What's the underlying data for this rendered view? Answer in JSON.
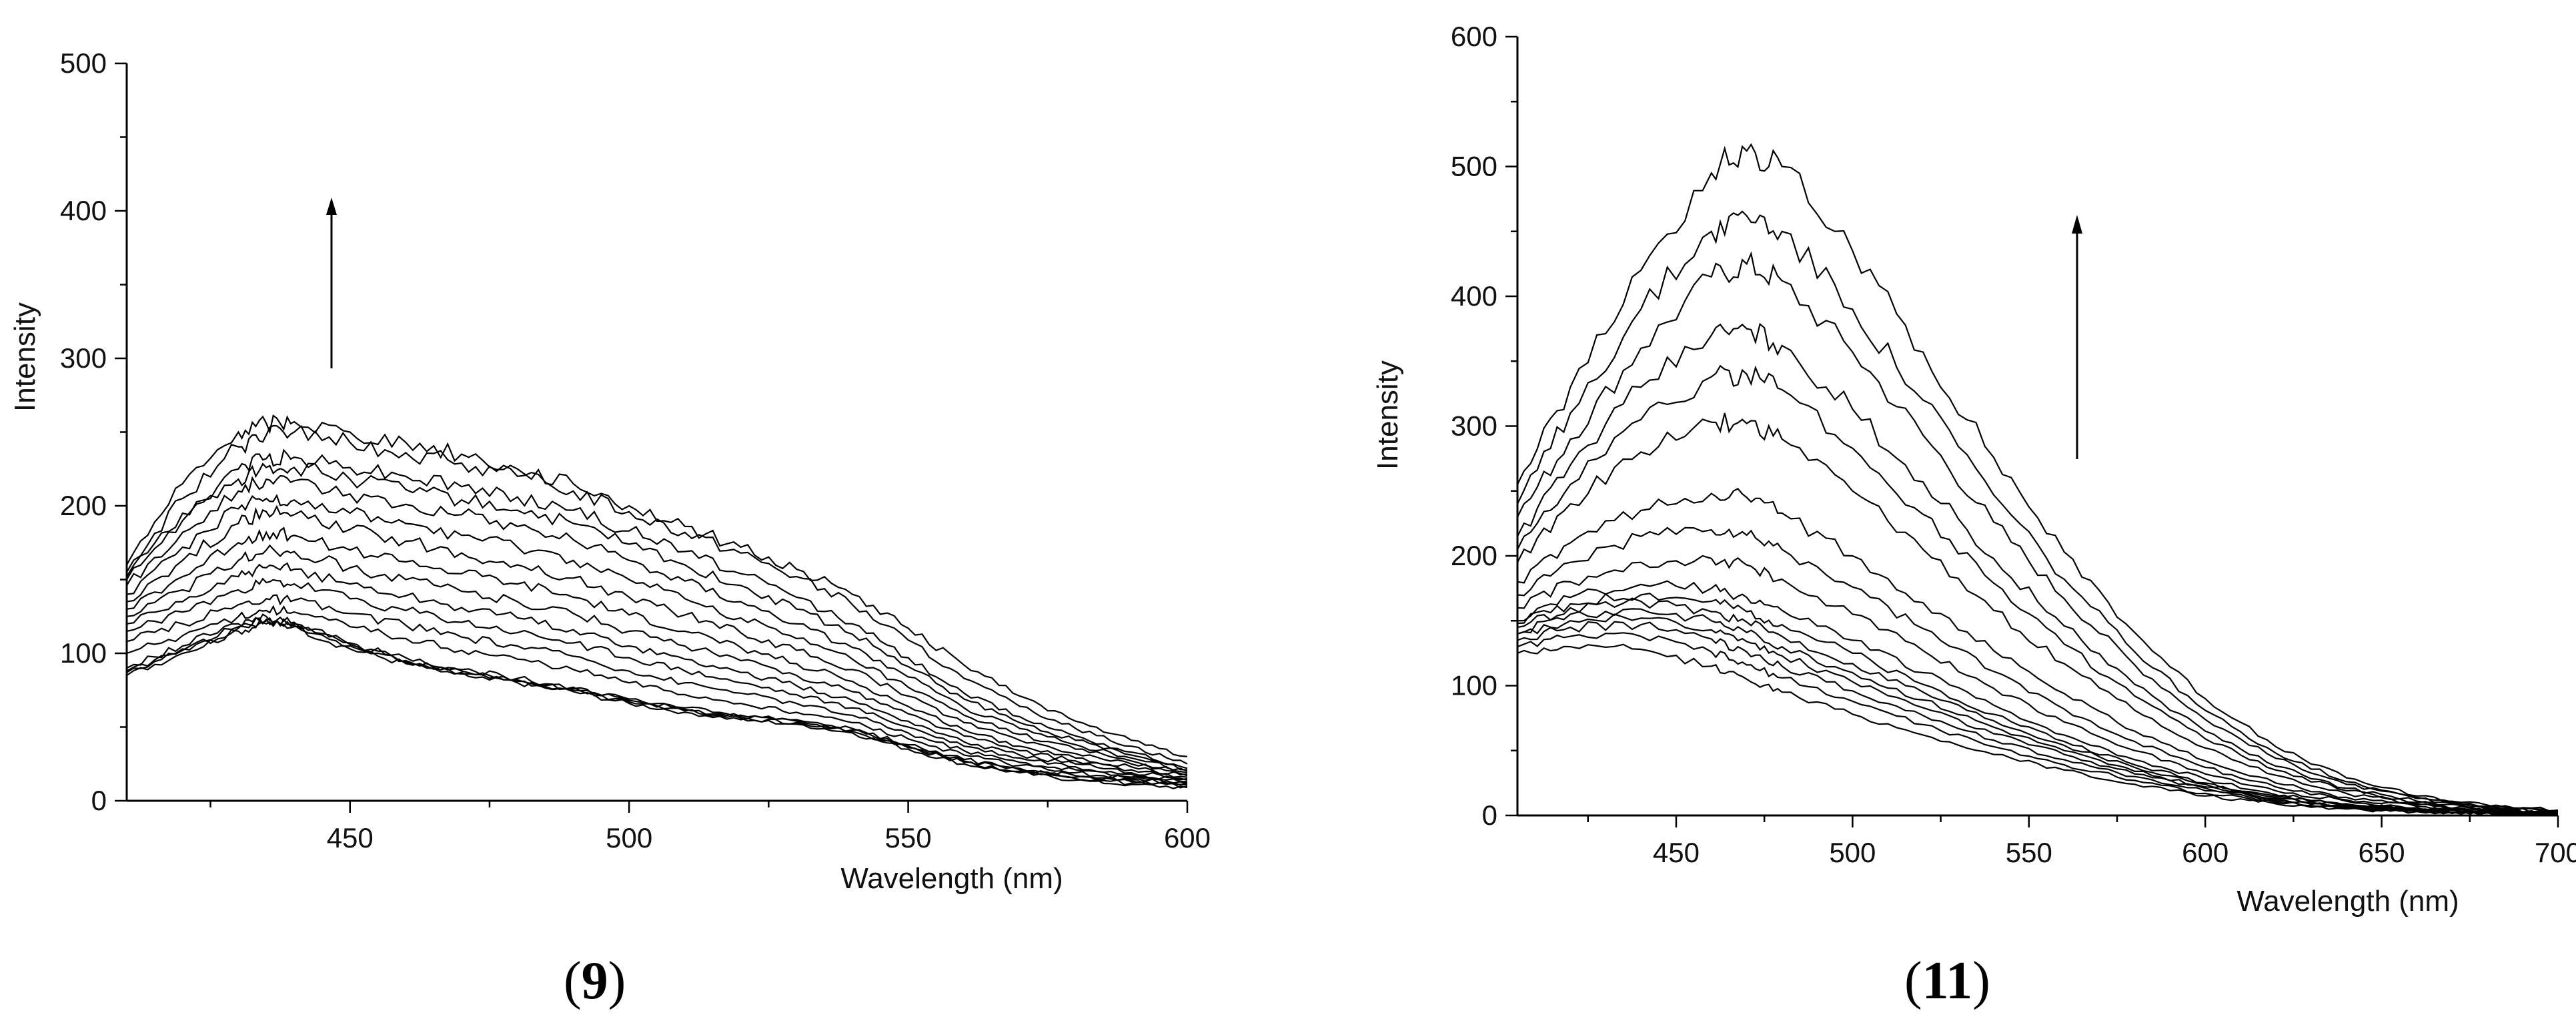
{
  "chart_data": [
    {
      "type": "line",
      "panel_label": "9",
      "xlabel": "Wavelength (nm)",
      "ylabel": "Intensity",
      "xlim": [
        410,
        600
      ],
      "ylim": [
        0,
        500
      ],
      "x_ticks": [
        450,
        500,
        550,
        600
      ],
      "y_ticks": [
        0,
        100,
        200,
        300,
        400,
        500
      ],
      "grid": false,
      "legend": "none",
      "annotation": "upward arrow indicating increasing intensity",
      "series_points_x": [
        410,
        420,
        430,
        435,
        440,
        450,
        460,
        470,
        480,
        490,
        500,
        510,
        520,
        530,
        540,
        550,
        560,
        570,
        580,
        590,
        600
      ],
      "series": [
        {
          "values": [
            85,
            100,
            115,
            120,
            118,
            103,
            93,
            86,
            80,
            74,
            66,
            60,
            55,
            52,
            46,
            35,
            25,
            19,
            14,
            11,
            9
          ]
        },
        {
          "values": [
            87,
            102,
            117,
            122,
            119,
            105,
            94,
            87,
            81,
            75,
            67,
            61,
            56,
            53,
            47,
            36,
            26,
            20,
            15,
            12,
            10
          ]
        },
        {
          "values": [
            88,
            103,
            118,
            123,
            120,
            106,
            95,
            88,
            82,
            76,
            68,
            62,
            57,
            54,
            48,
            37,
            27,
            21,
            16,
            13,
            11
          ]
        },
        {
          "values": [
            90,
            105,
            120,
            125,
            121,
            107,
            97,
            89,
            83,
            77,
            69,
            63,
            58,
            55,
            49,
            38,
            28,
            22,
            17,
            14,
            12
          ]
        },
        {
          "values": [
            100,
            112,
            125,
            129,
            128,
            118,
            110,
            102,
            96,
            89,
            80,
            72,
            66,
            60,
            53,
            42,
            31,
            24,
            19,
            15,
            12
          ]
        },
        {
          "values": [
            108,
            120,
            133,
            137,
            136,
            127,
            119,
            111,
            105,
            98,
            88,
            80,
            73,
            66,
            58,
            46,
            34,
            26,
            21,
            16,
            13
          ]
        },
        {
          "values": [
            115,
            128,
            143,
            148,
            147,
            137,
            129,
            121,
            114,
            107,
            97,
            88,
            80,
            72,
            63,
            50,
            37,
            29,
            23,
            18,
            14
          ]
        },
        {
          "values": [
            120,
            135,
            152,
            158,
            157,
            147,
            139,
            131,
            124,
            116,
            105,
            96,
            87,
            78,
            68,
            54,
            40,
            31,
            25,
            19,
            15
          ]
        },
        {
          "values": [
            125,
            143,
            163,
            170,
            169,
            158,
            150,
            142,
            135,
            127,
            115,
            105,
            95,
            85,
            74,
            59,
            44,
            34,
            27,
            21,
            16
          ]
        },
        {
          "values": [
            130,
            152,
            175,
            182,
            180,
            170,
            162,
            154,
            147,
            138,
            126,
            115,
            104,
            93,
            81,
            64,
            48,
            37,
            29,
            23,
            17
          ]
        },
        {
          "values": [
            135,
            163,
            188,
            196,
            194,
            184,
            176,
            168,
            160,
            151,
            138,
            126,
            114,
            102,
            89,
            71,
            53,
            41,
            32,
            25,
            18
          ]
        },
        {
          "values": [
            140,
            172,
            198,
            205,
            204,
            195,
            188,
            180,
            172,
            163,
            150,
            137,
            124,
            110,
            96,
            77,
            58,
            45,
            35,
            27,
            19
          ]
        },
        {
          "values": [
            146,
            182,
            210,
            218,
            217,
            208,
            201,
            194,
            186,
            177,
            163,
            149,
            135,
            120,
            104,
            84,
            63,
            49,
            38,
            29,
            20
          ]
        },
        {
          "values": [
            150,
            190,
            218,
            226,
            226,
            218,
            211,
            204,
            197,
            188,
            174,
            160,
            146,
            130,
            113,
            91,
            69,
            53,
            41,
            31,
            21
          ]
        },
        {
          "values": [
            152,
            195,
            225,
            232,
            233,
            226,
            220,
            213,
            206,
            197,
            183,
            169,
            154,
            138,
            120,
            97,
            73,
            57,
            44,
            33,
            22
          ]
        },
        {
          "values": [
            155,
            205,
            240,
            248,
            250,
            243,
            236,
            229,
            220,
            210,
            196,
            182,
            168,
            152,
            133,
            109,
            83,
            64,
            49,
            37,
            25
          ]
        },
        {
          "values": [
            160,
            215,
            250,
            256,
            257,
            250,
            243,
            235,
            225,
            215,
            200,
            186,
            172,
            157,
            140,
            117,
            92,
            71,
            54,
            41,
            30
          ]
        }
      ]
    },
    {
      "type": "line",
      "panel_label": "11",
      "xlabel": "Wavelength (nm)",
      "ylabel": "Intensity",
      "xlim": [
        405,
        700
      ],
      "ylim": [
        0,
        600
      ],
      "x_ticks": [
        450,
        500,
        550,
        600,
        650,
        700
      ],
      "y_ticks": [
        0,
        100,
        200,
        300,
        400,
        500,
        600
      ],
      "grid": false,
      "legend": "none",
      "annotation": "upward arrow indicating increasing intensity",
      "series_points_x": [
        405,
        420,
        440,
        460,
        470,
        480,
        500,
        520,
        540,
        560,
        580,
        600,
        620,
        640,
        660,
        680,
        700
      ],
      "series": [
        {
          "values": [
            125,
            130,
            128,
            115,
            105,
            95,
            78,
            62,
            47,
            35,
            24,
            15,
            9,
            5,
            3,
            2,
            1
          ]
        },
        {
          "values": [
            130,
            138,
            138,
            126,
            116,
            106,
            88,
            70,
            53,
            39,
            27,
            17,
            10,
            6,
            3,
            2,
            1
          ]
        },
        {
          "values": [
            135,
            145,
            147,
            136,
            126,
            115,
            96,
            77,
            58,
            43,
            30,
            19,
            11,
            6,
            4,
            2,
            1
          ]
        },
        {
          "values": [
            140,
            150,
            152,
            143,
            134,
            123,
            103,
            83,
            63,
            47,
            32,
            21,
            12,
            7,
            4,
            2,
            1
          ]
        },
        {
          "values": [
            140,
            155,
            159,
            150,
            141,
            130,
            110,
            89,
            68,
            50,
            34,
            22,
            13,
            7,
            4,
            2,
            1
          ]
        },
        {
          "values": [
            145,
            160,
            165,
            157,
            149,
            138,
            117,
            95,
            73,
            54,
            37,
            24,
            14,
            8,
            4,
            2,
            1
          ]
        },
        {
          "values": [
            148,
            163,
            170,
            165,
            157,
            147,
            125,
            101,
            78,
            57,
            39,
            25,
            15,
            8,
            5,
            3,
            1
          ]
        },
        {
          "values": [
            150,
            168,
            178,
            175,
            168,
            158,
            135,
            110,
            85,
            62,
            43,
            28,
            16,
            9,
            5,
            3,
            2
          ]
        },
        {
          "values": [
            160,
            180,
            195,
            198,
            193,
            182,
            155,
            127,
            98,
            72,
            50,
            32,
            19,
            11,
            6,
            3,
            2
          ]
        },
        {
          "values": [
            170,
            195,
            215,
            220,
            216,
            205,
            176,
            144,
            111,
            82,
            57,
            37,
            22,
            12,
            7,
            4,
            2
          ]
        },
        {
          "values": [
            180,
            210,
            235,
            248,
            245,
            233,
            200,
            164,
            127,
            94,
            65,
            42,
            25,
            14,
            8,
            4,
            2
          ]
        },
        {
          "values": [
            195,
            240,
            280,
            303,
            302,
            290,
            250,
            205,
            158,
            117,
            81,
            52,
            31,
            17,
            9,
            5,
            3
          ]
        },
        {
          "values": [
            205,
            255,
            305,
            338,
            340,
            328,
            283,
            232,
            179,
            132,
            92,
            59,
            35,
            19,
            10,
            5,
            3
          ]
        },
        {
          "values": [
            215,
            270,
            330,
            370,
            375,
            362,
            313,
            257,
            198,
            146,
            101,
            65,
            38,
            21,
            11,
            6,
            3
          ]
        },
        {
          "values": [
            230,
            290,
            360,
            415,
            425,
            412,
            357,
            293,
            226,
            167,
            116,
            74,
            44,
            24,
            13,
            7,
            4
          ]
        },
        {
          "values": [
            240,
            310,
            390,
            450,
            462,
            450,
            390,
            320,
            247,
            182,
            126,
            81,
            48,
            26,
            14,
            7,
            4
          ]
        },
        {
          "values": [
            255,
            330,
            420,
            495,
            512,
            500,
            435,
            357,
            276,
            203,
            141,
            90,
            53,
            29,
            15,
            8,
            4
          ]
        }
      ]
    }
  ]
}
